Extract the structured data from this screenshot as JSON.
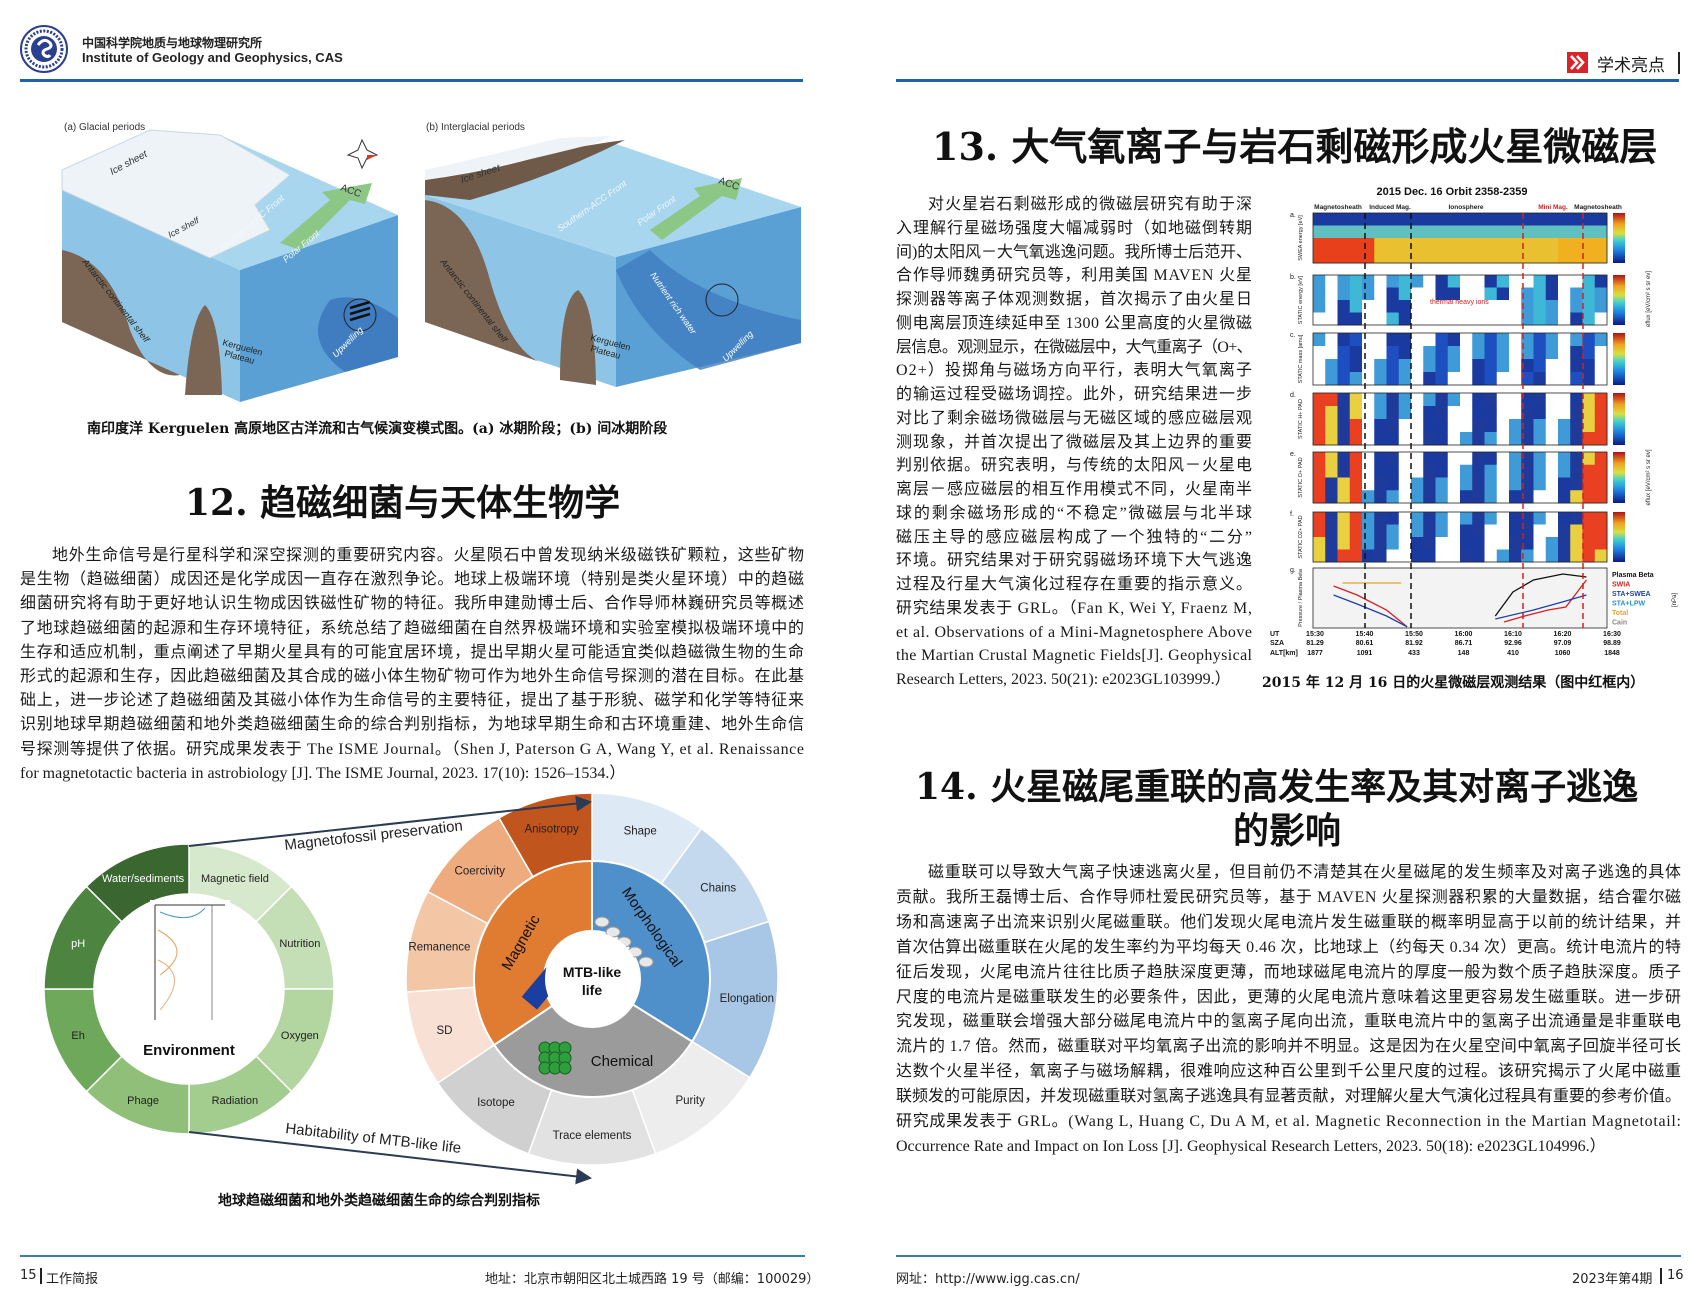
{
  "header": {
    "institute_cn": "中国科学院地质与地球物理研究所",
    "institute_en": "Institute of Geology and Geophysics, CAS",
    "section_label": "学术亮点",
    "logo_icon": "igg-logo-icon",
    "section_icon": "double-chevron-right-icon",
    "accent_color": "#1d63a6",
    "section_icon_color": "#d9252a"
  },
  "figure_glacial": {
    "panel_a": {
      "title": "(a) Glacial periods",
      "ice_sheet": "Ice sheet",
      "ice_shelf": "Ice shelf",
      "southern_acc": "Southern-ACC Front",
      "polar_front": "Polar Front",
      "acc": "ACC",
      "shelf": "Antarctic continental shelf",
      "plateau_1": "Kerguelen",
      "plateau_2": "Plateau",
      "upwelling": "Upwelling"
    },
    "panel_b": {
      "title": "(b) Interglacial periods",
      "ice_sheet": "Ice sheet",
      "southern_acc": "Southern-ACC Front",
      "polar_front": "Polar Front",
      "acc": "ACC",
      "shelf": "Antarctic continental shelf",
      "plateau_1": "Kerguelen",
      "plateau_2": "Plateau",
      "nutrient": "Nutrient rich water",
      "upwelling": "Upwelling"
    },
    "caption": "南印度洋 Kerguelen 高原地区古洋流和古气候演变模式图。(a) 冰期阶段；(b) 间冰期阶段"
  },
  "section12": {
    "title": "12.  趋磁细菌与天体生物学",
    "lines": [
      "地外生命信号是行星科学和深空探测的重要研究内容。火星陨石中曾发现纳米级磁铁矿颗粒，这些矿物",
      "是生物（趋磁细菌）成因还是化学成因一直存在激烈争论。地球上极端环境（特别是类火星环境）中的趋磁",
      "细菌研究将有助于更好地认识生物成因铁磁性矿物的特征。我所申建勋博士后、合作导师林巍研究员等概述",
      "了地球趋磁细菌的起源和生存环境特征，系统总结了趋磁细菌在自然界极端环境和实验室模拟极端环境中的",
      "生存和适应机制，重点阐述了早期火星具有的可能宜居环境，提出早期火星可能适宜类似趋磁微生物的生命",
      "形式的起源和生存，因此趋磁细菌及其合成的磁小体生物矿物可作为地外生命信号探测的潜在目标。在此基",
      "础上，进一步论述了趋磁细菌及其磁小体作为生命信号的主要特征，提出了基于形貌、磁学和化学等特征来",
      "识别地球早期趋磁细菌和地外类趋磁细菌生命的综合判别指标，为地球早期生命和古环境重建、地外生命信",
      "号探测等提供了依据。研究成果发表于 The ISME Journal。（Shen J, Paterson G A, Wang Y, et al. Renaissance",
      "for magnetotactic bacteria in astrobiology [J]. The ISME Journal, 2023. 17(10): 1526–1534.）"
    ]
  },
  "figure_mtb": {
    "arrow_top": "Magnetofossil preservation",
    "arrow_bottom": "Habitability of MTB-like life",
    "environment_label": "Environment",
    "environment_segments": [
      {
        "label": "Magnetic field",
        "color": "#d6e9cc"
      },
      {
        "label": "Nutrition",
        "color": "#c4dfb5"
      },
      {
        "label": "Oxygen",
        "color": "#b3d6a1"
      },
      {
        "label": "Radiation",
        "color": "#a3cc8f"
      },
      {
        "label": "Phage",
        "color": "#8fbf79"
      },
      {
        "label": "Eh",
        "color": "#6ea85b"
      },
      {
        "label": "pH",
        "color": "#4d8440"
      },
      {
        "label": "Water/sediments",
        "color": "#3a6630"
      }
    ],
    "center_label_1": "MTB-like",
    "center_label_2": "life",
    "categories": [
      {
        "label": "Morphological",
        "color": "#4f8fca",
        "items": [
          {
            "label": "Shape",
            "color": "#dde9f5"
          },
          {
            "label": "Chains",
            "color": "#c4d9ee"
          },
          {
            "label": "Elongation",
            "color": "#a8c6e6"
          }
        ]
      },
      {
        "label": "Chemical",
        "color": "#9b9b9b",
        "items": [
          {
            "label": "Purity",
            "color": "#ededed"
          },
          {
            "label": "Trace elements",
            "color": "#e2e2e2"
          },
          {
            "label": "Isotope",
            "color": "#d0d0d0"
          }
        ]
      },
      {
        "label": "Magnetic",
        "color": "#e07b32",
        "items": [
          {
            "label": "SD",
            "color": "#f8e0d4"
          },
          {
            "label": "Remanence",
            "color": "#f3c6a6"
          },
          {
            "label": "Coercivity",
            "color": "#eeab7e"
          },
          {
            "label": "Anisotropy",
            "color": "#c0561e"
          }
        ]
      }
    ],
    "caption": "地球趋磁细菌和地外类趋磁细菌生命的综合判别指标"
  },
  "section13": {
    "title": "13.  大气氧离子与岩石剩磁形成火星微磁层",
    "lines": [
      "对火星岩石剩磁形成的微磁层研究有助于深",
      "入理解行星磁场强度大幅减弱时（如地磁倒转期",
      "间)的太阳风－大气氧逃逸问题。我所博士后范开、",
      "合作导师魏勇研究员等，利用美国 MAVEN 火星",
      "探测器等离子体观测数据，首次揭示了由火星日",
      "侧电离层顶连续延申至 1300 公里高度的火星微磁",
      "层信息。观测显示，在微磁层中，大气重离子（O+、",
      "O2+）投掷角与磁场方向平行，表明大气氧离子",
      "的输运过程受磁场调控。此外，研究结果进一步",
      "对比了剩余磁场微磁层与无磁区域的感应磁层观",
      "测现象，并首次提出了微磁层及其上边界的重要",
      "判别依据。研究表明，与传统的太阳风－火星电",
      "离层－感应磁层的相互作用模式不同，火星南半",
      "球的剩余磁场形成的“不稳定”微磁层与北半球",
      "磁压主导的感应磁层构成了一个独特的“二分”",
      "环境。研究结果对于研究弱磁场环境下大气逃逸",
      "过程及行星大气演化过程存在重要的指示意义。",
      "研究结果发表于 GRL。（Fan K, Wei Y, Fraenz M,",
      "et al. Observations of a Mini-Magnetosphere Above",
      "the Martian Crustal Magnetic Fields[J]. Geophysical",
      "Research Letters, 2023. 50(21): e2023GL103999.）"
    ]
  },
  "figure_mars": {
    "title": "2015 Dec. 16 Orbit 2358-2359",
    "regions": [
      "Magnetosheath",
      "Induced Mag.",
      "Ionosphere",
      "Mini Mag.",
      "Magnetosheath"
    ],
    "panel_letters": [
      "a.",
      "b.",
      "c.",
      "d.",
      "e.",
      "f.",
      "g."
    ],
    "panel_ylabels": [
      "SWEA energy [eV]",
      "STATIC energy [eV]",
      "STATIC mass [amu]",
      "STATIC H+ PAD",
      "STATIC O+ PAD",
      "STATIC O2+ PAD",
      "Pressure / Plasma Beta"
    ],
    "colorbar_label": "eflux [eV/cm² s sr ev]",
    "annotation": "thermal heavy ions",
    "legend": [
      "Plasma Beta",
      "SWIA",
      "STA+SWEA",
      "STA+LPW",
      "Total",
      "Cain"
    ],
    "legend_colors": [
      "#111111",
      "#d62020",
      "#1f3fa8",
      "#2a8fd0",
      "#e0a62a",
      "#888888"
    ],
    "legend_unit": "[nPa]",
    "row_labels": [
      "UT",
      "SZA",
      "ALT[km]"
    ],
    "ut": [
      "15:30",
      "15:40",
      "15:50",
      "16:00",
      "16:10",
      "16:20",
      "16:30"
    ],
    "sza": [
      "81.29",
      "80.61",
      "81.92",
      "86.71",
      "92.96",
      "97.09",
      "98.89"
    ],
    "alt": [
      "1877",
      "1091",
      "433",
      "148",
      "410",
      "1060",
      "1848"
    ],
    "highlight_color": "#d62020",
    "caption": "2015 年 12 月 16 日的火星微磁层观测结果（图中红框内）"
  },
  "section14": {
    "title_line1": "14.  火星磁尾重联的高发生率及其对离子逃逸",
    "title_line2": "的影响",
    "lines": [
      "磁重联可以导致大气离子快速逃离火星，但目前仍不清楚其在火星磁尾的发生频率及对离子逃逸的具体",
      "贡献。我所王磊博士后、合作导师杜爱民研究员等，基于 MAVEN 火星探测器积累的大量数据，结合霍尔磁",
      "场和高速离子出流来识别火尾磁重联。他们发现火尾电流片发生磁重联的概率明显高于以前的统计结果，并",
      "首次估算出磁重联在火尾的发生率约为平均每天 0.46 次，比地球上（约每天 0.34 次）更高。统计电流片的特",
      "征后发现，火尾电流片往往比质子趋肤深度更薄，而地球磁尾电流片的厚度一般为数个质子趋肤深度。质子",
      "尺度的电流片是磁重联发生的必要条件，因此，更薄的火尾电流片意味着这里更容易发生磁重联。进一步研",
      "究发现，磁重联会增强大部分磁尾电流片中的氢离子尾向出流，重联电流片中的氢离子出流通量是非重联电",
      "流片的 1.7 倍。然而，磁重联对平均氧离子出流的影响并不明显。这是因为在火星空间中氧离子回旋半径可长",
      "达数个火星半径，氧离子与磁场解耦，很难响应这种百公里到千公里尺度的过程。该研究揭示了火尾中磁重",
      "联频发的可能原因，并发现磁重联对氢离子逃逸具有显著贡献，对理解火星大气演化过程具有重要的参考价值。",
      "研究成果发表于 GRL。(Wang L, Huang C, Du A M, et al. Magnetic Reconnection in the Martian Magnetotail:",
      "Occurrence Rate and Impact on Ion Loss [J]. Geophysical Research Letters, 2023. 50(18): e2023GL104996.）"
    ]
  },
  "footer": {
    "left_page": "15",
    "left_title": "工作简报",
    "address": "地址：北京市朝阳区北土城西路 19 号（邮编：100029）",
    "website": "网址：http://www.igg.cas.cn/",
    "issue": "2023年第4期",
    "right_page": "16"
  }
}
